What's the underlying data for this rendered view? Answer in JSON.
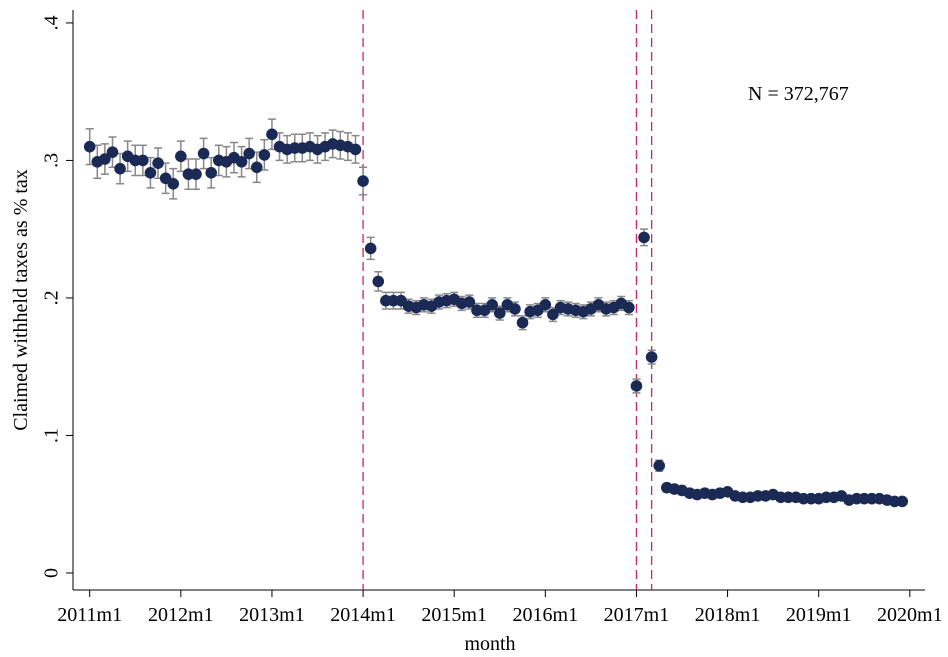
{
  "chart_data": {
    "type": "scatter",
    "x_label": "month",
    "y_label": "Claimed withheld taxes as % tax",
    "annotation": "N =  372,767",
    "xlim": [
      609.8,
      722
    ],
    "ylim": [
      -0.0124,
      0.4094
    ],
    "xticks": [
      {
        "value": 612,
        "label": "2011m1"
      },
      {
        "value": 624,
        "label": "2012m1"
      },
      {
        "value": 636,
        "label": "2013m1"
      },
      {
        "value": 648,
        "label": "2014m1"
      },
      {
        "value": 660,
        "label": "2015m1"
      },
      {
        "value": 672,
        "label": "2016m1"
      },
      {
        "value": 684,
        "label": "2017m1"
      },
      {
        "value": 696,
        "label": "2018m1"
      },
      {
        "value": 708,
        "label": "2019m1"
      },
      {
        "value": 720,
        "label": "2020m1"
      }
    ],
    "yticks": [
      0,
      {
        "value": 0.1,
        "label": ".1"
      },
      {
        "value": 0.2,
        "label": ".2"
      },
      {
        "value": 0.3,
        "label": ".3"
      },
      {
        "value": 0.4,
        "label": ".4"
      }
    ],
    "vlines": [
      648,
      684,
      686
    ],
    "vline_color": "#c8285a",
    "x": [
      612,
      613,
      614,
      615,
      616,
      617,
      618,
      619,
      620,
      621,
      622,
      623,
      624,
      625,
      626,
      627,
      628,
      629,
      630,
      631,
      632,
      633,
      634,
      635,
      636,
      637,
      638,
      639,
      640,
      641,
      642,
      643,
      644,
      645,
      646,
      647,
      648,
      649,
      650,
      651,
      652,
      653,
      654,
      655,
      656,
      657,
      658,
      659,
      660,
      661,
      662,
      663,
      664,
      665,
      666,
      667,
      668,
      669,
      670,
      671,
      672,
      673,
      674,
      675,
      676,
      677,
      678,
      679,
      680,
      681,
      682,
      683,
      684,
      685,
      686,
      687,
      688,
      689,
      690,
      691,
      692,
      693,
      694,
      695,
      696,
      697,
      698,
      699,
      700,
      701,
      702,
      703,
      704,
      705,
      706,
      707,
      708,
      709,
      710,
      711,
      712,
      713,
      714,
      715,
      716,
      717,
      718,
      719
    ],
    "series": [
      {
        "color": "#1a2a55",
        "error_color": "#888888",
        "values": [
          0.31,
          0.299,
          0.301,
          0.306,
          0.294,
          0.303,
          0.3,
          0.3,
          0.291,
          0.298,
          0.287,
          0.283,
          0.303,
          0.29,
          0.29,
          0.305,
          0.291,
          0.3,
          0.299,
          0.302,
          0.299,
          0.305,
          0.295,
          0.304,
          0.319,
          0.31,
          0.308,
          0.309,
          0.309,
          0.31,
          0.308,
          0.31,
          0.312,
          0.311,
          0.31,
          0.308,
          0.285,
          0.236,
          0.212,
          0.198,
          0.198,
          0.198,
          0.194,
          0.193,
          0.195,
          0.194,
          0.197,
          0.198,
          0.199,
          0.196,
          0.197,
          0.191,
          0.191,
          0.195,
          0.189,
          0.195,
          0.192,
          0.182,
          0.19,
          0.191,
          0.195,
          0.188,
          0.193,
          0.192,
          0.191,
          0.19,
          0.192,
          0.195,
          0.192,
          0.193,
          0.196,
          0.193,
          0.136,
          0.244,
          0.157,
          0.078,
          0.062,
          0.061,
          0.06,
          0.058,
          0.057,
          0.058,
          0.057,
          0.058,
          0.059,
          0.056,
          0.055,
          0.055,
          0.056,
          0.056,
          0.057,
          0.055,
          0.055,
          0.055,
          0.054,
          0.054,
          0.054,
          0.055,
          0.055,
          0.056,
          0.053,
          0.054,
          0.054,
          0.054,
          0.054,
          0.053,
          0.052,
          0.052
        ],
        "errors": [
          0.013,
          0.012,
          0.011,
          0.011,
          0.011,
          0.011,
          0.011,
          0.011,
          0.011,
          0.011,
          0.011,
          0.011,
          0.011,
          0.011,
          0.011,
          0.011,
          0.011,
          0.011,
          0.011,
          0.011,
          0.011,
          0.011,
          0.011,
          0.011,
          0.011,
          0.01,
          0.01,
          0.01,
          0.01,
          0.01,
          0.01,
          0.01,
          0.01,
          0.01,
          0.01,
          0.01,
          0.01,
          0.008,
          0.007,
          0.006,
          0.006,
          0.006,
          0.005,
          0.005,
          0.005,
          0.005,
          0.005,
          0.005,
          0.005,
          0.005,
          0.005,
          0.005,
          0.005,
          0.005,
          0.005,
          0.005,
          0.005,
          0.005,
          0.005,
          0.005,
          0.005,
          0.005,
          0.005,
          0.005,
          0.005,
          0.005,
          0.005,
          0.005,
          0.005,
          0.005,
          0.005,
          0.005,
          0.005,
          0.006,
          0.005,
          0.004,
          0.003,
          0.003,
          0.003,
          0.003,
          0.003,
          0.003,
          0.003,
          0.003,
          0.002,
          0.002,
          0.002,
          0.002,
          0.002,
          0.002,
          0.002,
          0.002,
          0.002,
          0.002,
          0.002,
          0.002,
          0.002,
          0.002,
          0.002,
          0.002,
          0.002,
          0.002,
          0.002,
          0.002,
          0.002,
          0.002,
          0.002,
          0.002
        ]
      }
    ]
  }
}
